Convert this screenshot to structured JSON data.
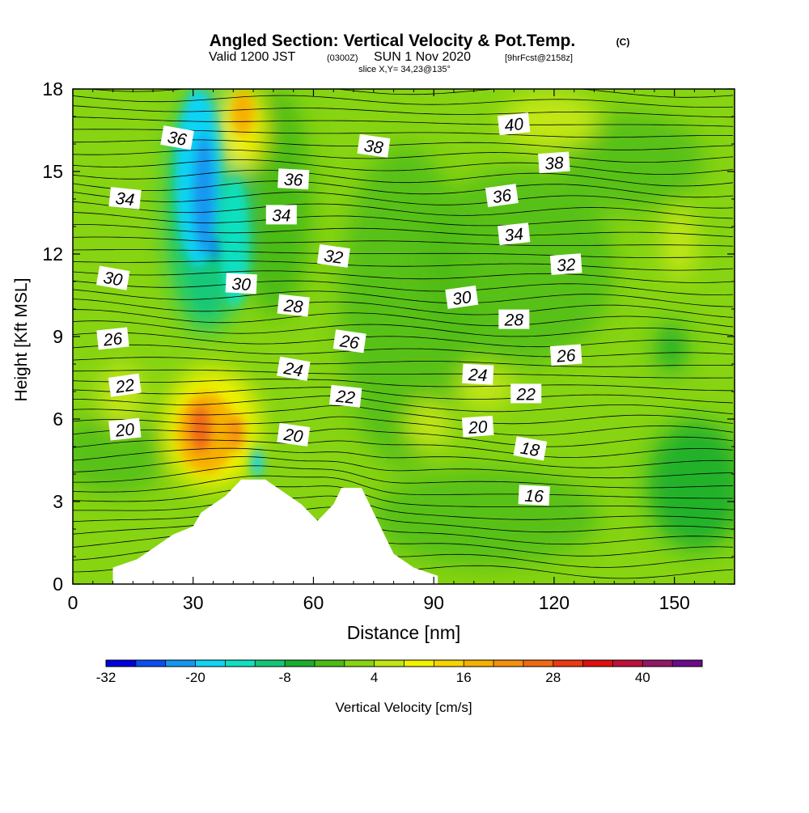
{
  "header": {
    "title_main": "Angled Section: Vertical Velocity & Pot.Temp.",
    "title_tag": "(C)",
    "valid_prefix": "Valid 1200 JST",
    "valid_utc": "(0300Z)",
    "valid_date": "SUN 1 Nov 2020",
    "valid_fcst": "[9hrFcst@2158z]",
    "slice": "slice X,Y= 34,23@135°"
  },
  "chart_data": {
    "type": "heatmap",
    "xlabel": "Distance [nm]",
    "ylabel": "Height [Kft MSL]",
    "xlim": [
      0,
      165
    ],
    "ylim": [
      0,
      18
    ],
    "xticks": [
      0,
      30,
      60,
      90,
      120,
      150
    ],
    "yticks": [
      0,
      3,
      6,
      9,
      12,
      15,
      18
    ],
    "shaded_field": "Vertical Velocity [cm/s]",
    "contour_field": "Potential Temperature (C)",
    "terrain_profile": [
      [
        10,
        0.6
      ],
      [
        16,
        0.9
      ],
      [
        19,
        1.2
      ],
      [
        22,
        1.5
      ],
      [
        25,
        1.8
      ],
      [
        30,
        2.1
      ],
      [
        32,
        2.6
      ],
      [
        35,
        2.9
      ],
      [
        38,
        3.2
      ],
      [
        40,
        3.5
      ],
      [
        42,
        3.8
      ],
      [
        45,
        3.8
      ],
      [
        48,
        3.8
      ],
      [
        51,
        3.5
      ],
      [
        54,
        3.2
      ],
      [
        57,
        2.9
      ],
      [
        59,
        2.6
      ],
      [
        61,
        2.3
      ],
      [
        63,
        2.6
      ],
      [
        65,
        2.9
      ],
      [
        67,
        3.5
      ],
      [
        70,
        3.5
      ],
      [
        72,
        3.5
      ],
      [
        74,
        2.9
      ],
      [
        76,
        2.3
      ],
      [
        78,
        1.7
      ],
      [
        80,
        1.1
      ],
      [
        82,
        0.9
      ],
      [
        85,
        0.6
      ],
      [
        91,
        0.3
      ]
    ],
    "theta_labels": [
      {
        "text": "40",
        "x": 110,
        "y": 16.7
      },
      {
        "text": "38",
        "x": 75,
        "y": 15.9
      },
      {
        "text": "38",
        "x": 120,
        "y": 15.3
      },
      {
        "text": "36",
        "x": 26,
        "y": 16.2
      },
      {
        "text": "36",
        "x": 55,
        "y": 14.7
      },
      {
        "text": "36",
        "x": 107,
        "y": 14.1
      },
      {
        "text": "34",
        "x": 13,
        "y": 14.0
      },
      {
        "text": "34",
        "x": 52,
        "y": 13.4
      },
      {
        "text": "34",
        "x": 110,
        "y": 12.7
      },
      {
        "text": "32",
        "x": 65,
        "y": 11.9
      },
      {
        "text": "32",
        "x": 123,
        "y": 11.6
      },
      {
        "text": "30",
        "x": 10,
        "y": 11.1
      },
      {
        "text": "30",
        "x": 42,
        "y": 10.9
      },
      {
        "text": "30",
        "x": 97,
        "y": 10.4
      },
      {
        "text": "28",
        "x": 55,
        "y": 10.1
      },
      {
        "text": "28",
        "x": 110,
        "y": 9.6
      },
      {
        "text": "26",
        "x": 10,
        "y": 8.9
      },
      {
        "text": "26",
        "x": 69,
        "y": 8.8
      },
      {
        "text": "26",
        "x": 123,
        "y": 8.3
      },
      {
        "text": "24",
        "x": 55,
        "y": 7.8
      },
      {
        "text": "24",
        "x": 101,
        "y": 7.6
      },
      {
        "text": "22",
        "x": 13,
        "y": 7.2
      },
      {
        "text": "22",
        "x": 68,
        "y": 6.8
      },
      {
        "text": "22",
        "x": 113,
        "y": 6.9
      },
      {
        "text": "20",
        "x": 13,
        "y": 5.6
      },
      {
        "text": "20",
        "x": 55,
        "y": 5.4
      },
      {
        "text": "20",
        "x": 101,
        "y": 5.7
      },
      {
        "text": "18",
        "x": 114,
        "y": 4.9
      },
      {
        "text": "16",
        "x": 115,
        "y": 3.2
      }
    ],
    "colorbar": {
      "label": "Vertical Velocity [cm/s]",
      "tick_labels": [
        "-32",
        "-20",
        "-8",
        "4",
        "16",
        "28",
        "40"
      ],
      "colors": [
        "#0000dd",
        "#0a4ff0",
        "#1497f0",
        "#10d4f4",
        "#10e0c0",
        "#12c878",
        "#1aae2c",
        "#4cbb16",
        "#86d412",
        "#c2e612",
        "#f2f200",
        "#f6d400",
        "#f6b000",
        "#f69010",
        "#f06a12",
        "#ec3a12",
        "#e00e0e",
        "#c0103a",
        "#901866",
        "#6c0a8a"
      ]
    }
  }
}
